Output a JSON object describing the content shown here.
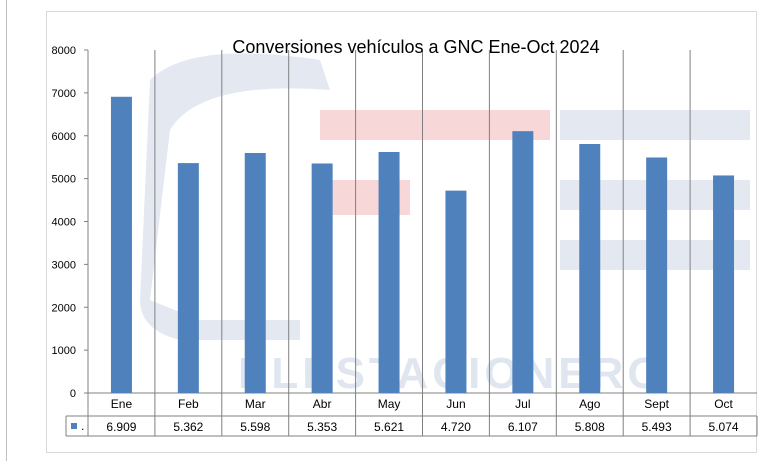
{
  "chart_data": {
    "type": "bar",
    "title": "Conversiones vehículos a GNC  Ene-Oct 2024",
    "categories": [
      "Ene",
      "Feb",
      "Mar",
      "Abr",
      "May",
      "Jun",
      "Jul",
      "Ago",
      "Sept",
      "Oct"
    ],
    "series": [
      {
        "values": [
          6909,
          5362,
          5598,
          5353,
          5621,
          4720,
          6107,
          5808,
          5493,
          5074
        ],
        "labels": [
          "6.909",
          "5.362",
          "5.598",
          "5.353",
          "5.621",
          "4.720",
          "6.107",
          "5.808",
          "5.493",
          "5.074"
        ]
      }
    ],
    "legend_key_text": ".",
    "yticks": [
      "0",
      "1000",
      "2000",
      "3000",
      "4000",
      "5000",
      "6000",
      "7000",
      "8000"
    ],
    "ylim": [
      0,
      8000
    ],
    "xlabel": "",
    "ylabel": "",
    "grid": "vertical category separators",
    "data_table": true,
    "bar_color": "#4f81bd",
    "watermark_text": "ELESTACIONERO",
    "watermark_color": "#dfe6f0",
    "watermark_accent_color": "#f7d7d7"
  }
}
